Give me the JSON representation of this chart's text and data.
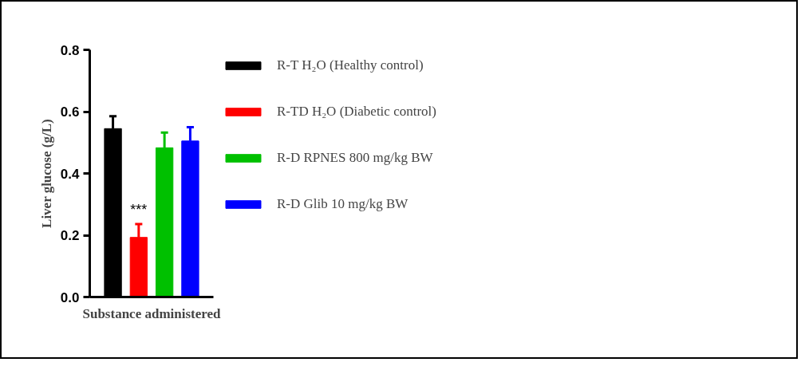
{
  "chart_data": {
    "type": "bar",
    "ylabel": "Liver glucose (g/L)",
    "xlabel": "Substance administered",
    "categories": [
      null,
      null,
      null,
      null
    ],
    "stacked": true,
    "ylim": [
      0,
      0.8
    ],
    "yticks": [
      {
        "value": 0,
        "label": "0.0"
      },
      {
        "value": 0.2,
        "label": "0.2"
      },
      {
        "value": 0.4,
        "label": "0.4"
      },
      {
        "value": 0.6,
        "label": "0.6"
      },
      {
        "value": 0.8,
        "label": "0.8"
      }
    ],
    "grid": false,
    "legend": "right",
    "tick_labels": "y",
    "series": [
      {
        "name": "R-T H₂O (Healthy control)",
        "color": "#000000",
        "values": [
          0.545,
          null,
          null,
          null
        ],
        "errors": [
          [
            0.545,
            0.585
          ],
          null,
          null,
          null
        ]
      },
      {
        "name": "R-TD H₂O (Diabetic control)",
        "color": "#ff0000",
        "values": [
          null,
          0.193,
          null,
          null
        ],
        "errors": [
          null,
          [
            0.193,
            0.236
          ],
          null,
          null
        ],
        "value_labels": [
          null,
          "***",
          null,
          null
        ]
      },
      {
        "name": "R-D RPNES 800 mg/kg BW",
        "color": "#00c000",
        "values": [
          null,
          null,
          0.483,
          null
        ],
        "errors": [
          null,
          null,
          [
            0.483,
            0.532
          ],
          null
        ]
      },
      {
        "name": "R-D Glib 10 mg/kg BW",
        "color": "#0000ff",
        "values": [
          null,
          null,
          null,
          0.505
        ],
        "errors": [
          null,
          null,
          null,
          [
            0.505,
            0.55
          ]
        ]
      }
    ]
  }
}
